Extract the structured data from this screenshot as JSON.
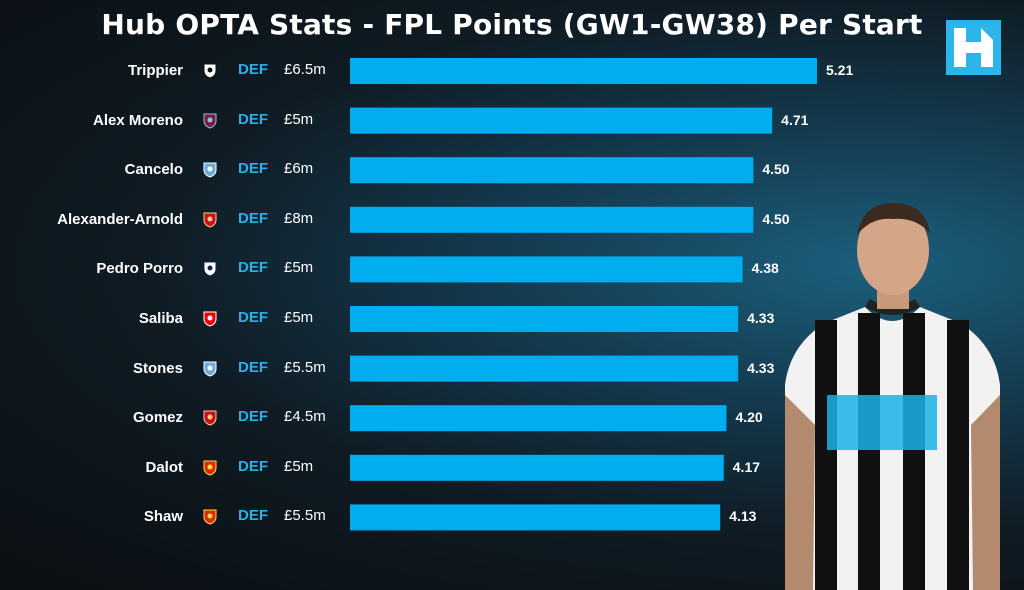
{
  "title": "Hub OPTA Stats - FPL Points (GW1-GW38) Per Start",
  "logo_text": "H",
  "colors": {
    "bar": "#00aeef",
    "position_text": "#26b3ec",
    "background": "#0f1a22"
  },
  "chart_data": {
    "type": "bar",
    "orientation": "horizontal",
    "categories": [
      "Trippier",
      "Alex Moreno",
      "Cancelo",
      "Alexander-Arnold",
      "Pedro Porro",
      "Saliba",
      "Stones",
      "Gomez",
      "Dalot",
      "Shaw"
    ],
    "values": [
      5.21,
      4.71,
      4.5,
      4.5,
      4.38,
      4.33,
      4.33,
      4.2,
      4.17,
      4.13
    ],
    "value_labels": [
      "5.21",
      "4.71",
      "4.50",
      "4.50",
      "4.38",
      "4.33",
      "4.33",
      "4.20",
      "4.17",
      "4.13"
    ],
    "positions": [
      "DEF",
      "DEF",
      "DEF",
      "DEF",
      "DEF",
      "DEF",
      "DEF",
      "DEF",
      "DEF",
      "DEF"
    ],
    "prices": [
      "£6.5m",
      "£5m",
      "£6m",
      "£8m",
      "£5m",
      "£5m",
      "£5.5m",
      "£4.5m",
      "£5m",
      "£5.5m"
    ],
    "clubs": [
      "newcastle",
      "aston-villa",
      "man-city",
      "liverpool",
      "tottenham",
      "arsenal",
      "man-city",
      "liverpool",
      "man-utd",
      "man-utd"
    ],
    "xlim": [
      0,
      5.21
    ],
    "grid": false,
    "legend": "none"
  }
}
